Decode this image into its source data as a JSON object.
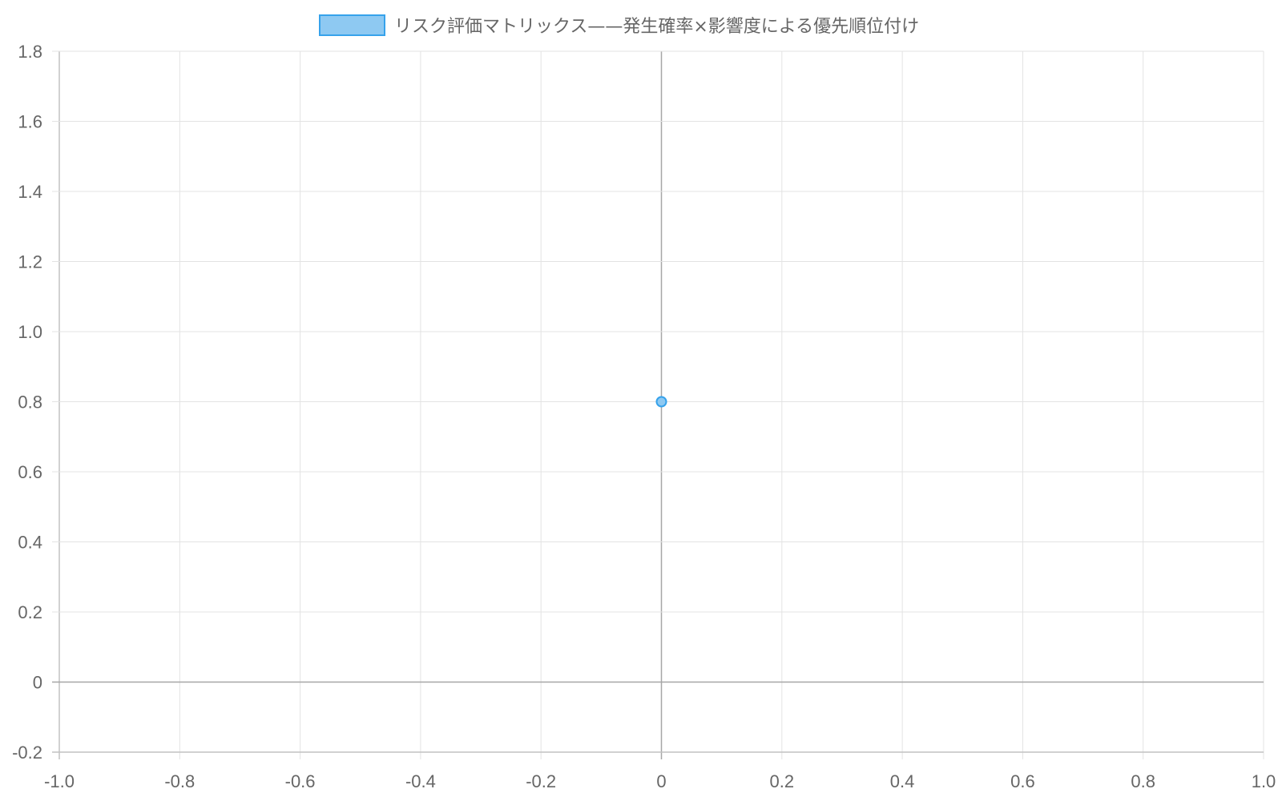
{
  "chart_data": {
    "type": "scatter",
    "title": "",
    "xlabel": "",
    "ylabel": "",
    "xlim": [
      -1.0,
      1.0
    ],
    "ylim": [
      -0.2,
      1.8
    ],
    "x_ticks": [
      "-1.0",
      "-0.8",
      "-0.6",
      "-0.4",
      "-0.2",
      "0",
      "0.2",
      "0.4",
      "0.6",
      "0.8",
      "1.0"
    ],
    "y_ticks": [
      "-0.2",
      "0",
      "0.2",
      "0.4",
      "0.6",
      "0.8",
      "1.0",
      "1.2",
      "1.4",
      "1.6",
      "1.8"
    ],
    "grid": true,
    "legend": {
      "position": "top",
      "entries": [
        "リスク評価マトリックス——発生確率×影響度による優先順位付け"
      ]
    },
    "series": [
      {
        "name": "リスク評価マトリックス——発生確率×影響度による優先順位付け",
        "color": "#36a2eb",
        "fill_color": "#8ec9f2",
        "points": [
          {
            "x": 0,
            "y": 0.8
          }
        ]
      }
    ]
  }
}
